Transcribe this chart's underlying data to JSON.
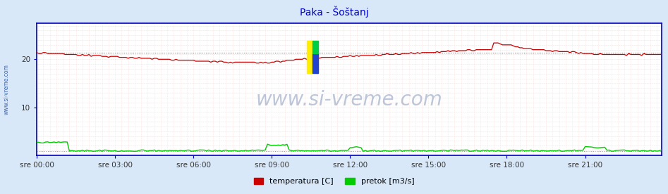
{
  "title": "Paka - Šoštanj",
  "title_color": "#0000cc",
  "bg_color": "#d8e8f8",
  "plot_bg_color": "#ffffff",
  "xlabel_ticks": [
    "sre 00:00",
    "sre 03:00",
    "sre 06:00",
    "sre 09:00",
    "sre 12:00",
    "sre 15:00",
    "sre 18:00",
    "sre 21:00"
  ],
  "ytick_labels": [
    "20",
    "10"
  ],
  "ytick_vals": [
    20,
    10
  ],
  "ylim": [
    0,
    27.5
  ],
  "xlim": [
    0,
    287
  ],
  "avg_temp": 21.3,
  "avg_flow": 0.9,
  "temp_color": "#cc0000",
  "flow_color": "#00cc00",
  "watermark": "www.si-vreme.com",
  "legend_temp": "temperatura [C]",
  "legend_flow": "pretok [m3/s]",
  "vgrid_color": "#ffcccc",
  "hgrid_color": "#ddcccc",
  "axis_color": "#0000bb",
  "sidebar_text": "www.si-vreme.com",
  "sidebar_color": "#4466aa",
  "n_points": 288,
  "n_vgrid_lines": 96
}
